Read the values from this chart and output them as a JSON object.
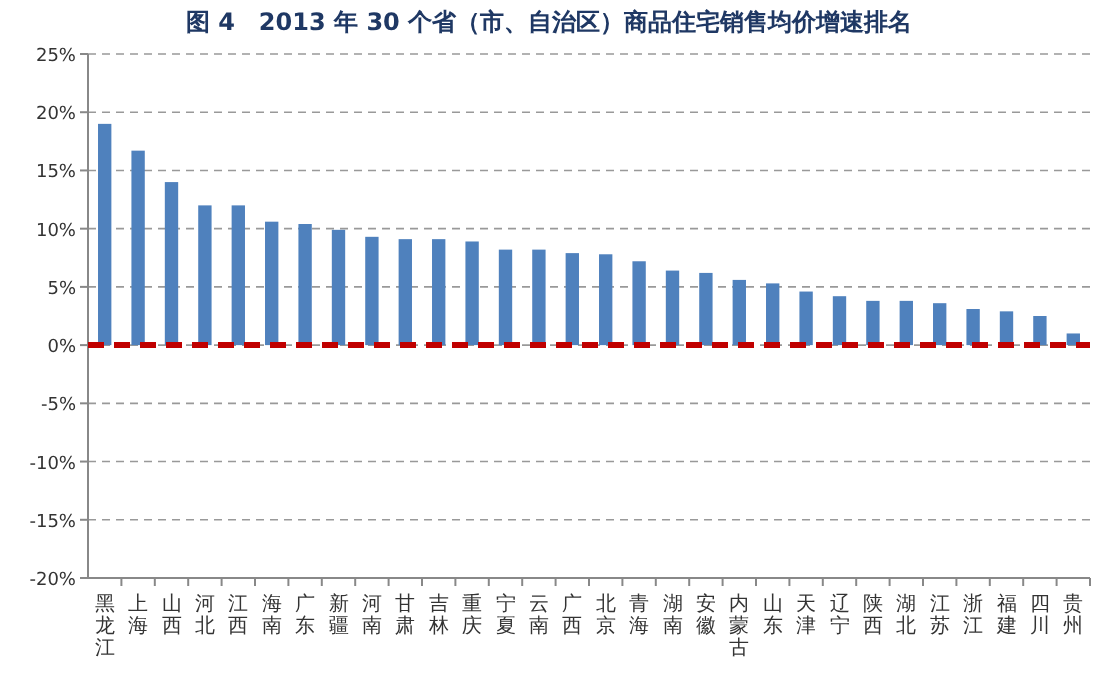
{
  "chart_data": {
    "type": "bar",
    "title": "图 4　2013 年 30 个省（市、自治区）商品住宅销售均价增速排名",
    "categories": [
      "黑龙江",
      "上海",
      "山西",
      "河北",
      "江西",
      "海南",
      "广东",
      "新疆",
      "河南",
      "甘肃",
      "吉林",
      "重庆",
      "宁夏",
      "云南",
      "广西",
      "北京",
      "青海",
      "湖南",
      "安徽",
      "内蒙古",
      "山东",
      "天津",
      "辽宁",
      "陕西",
      "湖北",
      "江苏",
      "浙江",
      "福建",
      "四川",
      "贵州"
    ],
    "values": [
      19.0,
      16.7,
      14.0,
      12.0,
      12.0,
      10.6,
      10.4,
      9.9,
      9.3,
      9.1,
      9.1,
      8.9,
      8.2,
      8.2,
      7.9,
      7.8,
      7.2,
      6.4,
      6.2,
      5.6,
      5.3,
      4.6,
      4.2,
      3.8,
      3.8,
      3.6,
      3.1,
      2.9,
      2.5,
      1.0
    ],
    "color": "#4f81bd",
    "ylim": [
      -20,
      25
    ],
    "yticks": [
      {
        "value": -20,
        "label": "-20%"
      },
      {
        "value": -15,
        "label": "-15%"
      },
      {
        "value": -10,
        "label": "-10%"
      },
      {
        "value": -5,
        "label": "-5%"
      },
      {
        "value": 0,
        "label": "0%"
      },
      {
        "value": 5,
        "label": "5%"
      },
      {
        "value": 10,
        "label": "10%"
      },
      {
        "value": 15,
        "label": "15%"
      },
      {
        "value": 20,
        "label": "20%"
      },
      {
        "value": 25,
        "label": "25%"
      }
    ],
    "grid": "y",
    "ref_lines": [
      {
        "axis": "y",
        "value": 0,
        "label": null,
        "color": "#c00000",
        "line_style": "dashed"
      }
    ]
  }
}
